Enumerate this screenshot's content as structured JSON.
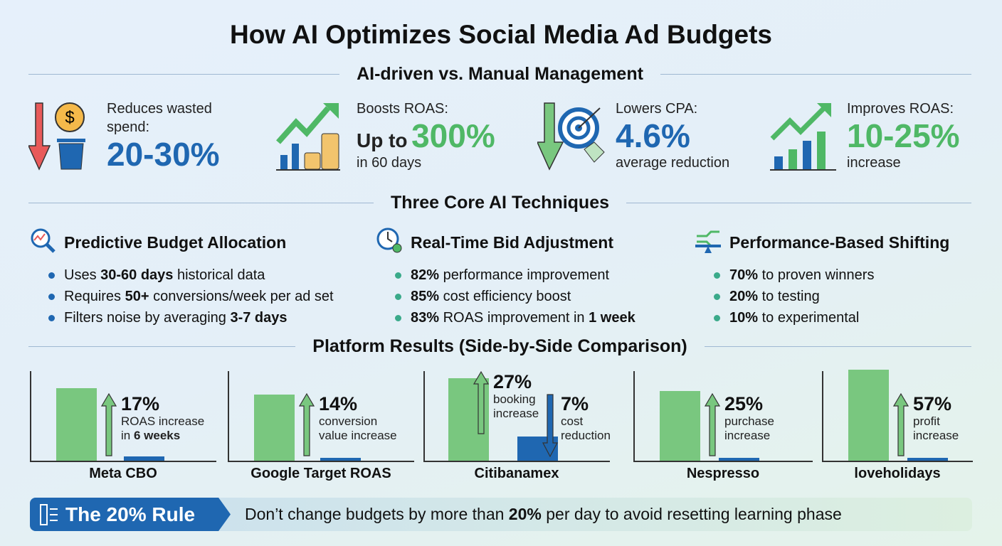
{
  "title": "How AI Optimizes Social Media Ad Budgets",
  "sections": {
    "comparison": "AI-driven vs. Manual Management",
    "techniques": "Three Core AI Techniques",
    "platforms": "Platform Results (Side-by-Side Comparison)"
  },
  "stats": [
    {
      "label": "Reduces wasted spend:",
      "value": "20-30%",
      "icon": "down-arrow-dollar-trash-icon"
    },
    {
      "label": "Boosts ROAS:",
      "prefix": "Up to",
      "value": "300%",
      "suffix": "in 60 days",
      "icon": "growth-chart-coins-icon"
    },
    {
      "label": "Lowers CPA:",
      "value": "4.6%",
      "suffix": "average reduction",
      "icon": "down-arrow-target-tag-icon"
    },
    {
      "label": "Improves ROAS:",
      "value": "10-25%",
      "suffix": "increase",
      "icon": "growth-bar-chart-icon"
    }
  ],
  "techniques": [
    {
      "title": "Predictive Budget Allocation",
      "icon": "magnifier-chart-icon",
      "bullets": [
        [
          "Uses ",
          "30-60 days",
          " historical data"
        ],
        [
          "Requires ",
          "50+",
          " conversions/week per ad set"
        ],
        [
          "Filters noise by averaging ",
          "3-7 days",
          ""
        ]
      ]
    },
    {
      "title": "Real-Time Bid Adjustment",
      "icon": "clock-gear-icon",
      "bullets": [
        [
          "",
          "82%",
          " performance improvement"
        ],
        [
          "",
          "85%",
          " cost efficiency boost"
        ],
        [
          "",
          "83%",
          " ROAS improvement in ",
          "1 week"
        ]
      ]
    },
    {
      "title": "Performance-Based Shifting",
      "icon": "balance-arrows-icon",
      "bullets": [
        [
          "",
          "70%",
          " to proven winners"
        ],
        [
          "",
          "20%",
          " to testing"
        ],
        [
          "",
          "10%",
          " to experimental"
        ]
      ]
    }
  ],
  "platforms": [
    {
      "name": "Meta CBO",
      "value": "17%",
      "desc1": "ROAS increase",
      "desc2a": "in ",
      "desc2b": "6 weeks"
    },
    {
      "name": "Google Target ROAS",
      "value": "14%",
      "desc1": "conversion",
      "desc2a": "value increase"
    },
    {
      "name": "Citibanamex",
      "value": "27%",
      "desc1": "booking",
      "desc2a": "increase",
      "value2": "7%",
      "desc3": "cost",
      "desc4": "reduction"
    },
    {
      "name": "Nespresso",
      "value": "25%",
      "desc1": "purchase",
      "desc2a": "increase"
    },
    {
      "name": "loveholidays",
      "value": "57%",
      "desc1": "profit",
      "desc2a": "increase"
    }
  ],
  "rule": {
    "title": "The 20% Rule",
    "text_a": "Don’t change budgets by more than ",
    "text_b": "20%",
    "text_c": " per day to avoid resetting learning phase"
  },
  "colors": {
    "blue": "#1f67b1",
    "green": "#4fb866",
    "red": "#e85a5a"
  }
}
